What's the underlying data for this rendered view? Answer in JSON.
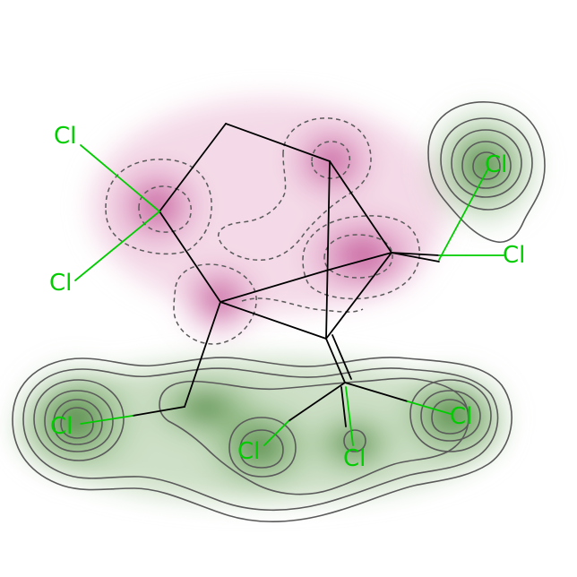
{
  "molecule": {
    "atoms": [
      {
        "id": "cl1",
        "label": "Cl"
      },
      {
        "id": "cl2",
        "label": "Cl"
      },
      {
        "id": "cl3",
        "label": "Cl"
      },
      {
        "id": "cl4",
        "label": "Cl"
      },
      {
        "id": "cl5",
        "label": "Cl"
      },
      {
        "id": "cl6",
        "label": "Cl"
      },
      {
        "id": "cl7",
        "label": "Cl"
      },
      {
        "id": "cl8",
        "label": "Cl"
      }
    ]
  },
  "colors": {
    "bond": "#000000",
    "chlorine": "#00cc00",
    "positive_contour": "#5a5a5a",
    "negative_contour": "#5a5a5a",
    "positive_fill": "#2e6b1e",
    "negative_fill": "#b0287a"
  }
}
